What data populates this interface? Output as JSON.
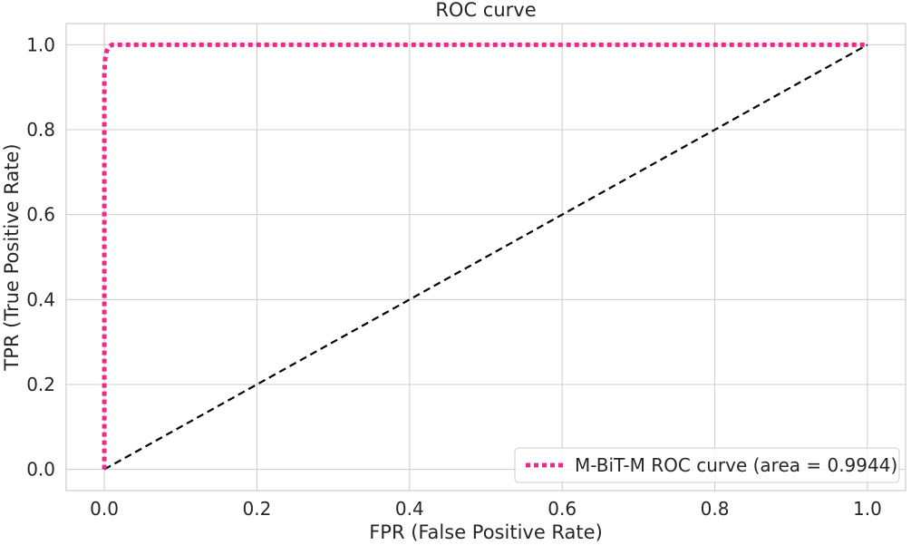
{
  "chart_data": {
    "type": "line",
    "title": "ROC curve",
    "xlabel": "FPR (False Positive Rate)",
    "ylabel": "TPR (True Positive Rate)",
    "xlim": [
      -0.05,
      1.05
    ],
    "ylim": [
      -0.05,
      1.05
    ],
    "x_ticks": [
      0.0,
      0.2,
      0.4,
      0.6,
      0.8,
      1.0
    ],
    "y_ticks": [
      0.0,
      0.2,
      0.4,
      0.6,
      0.8,
      1.0
    ],
    "x_tick_labels": [
      "0.0",
      "0.2",
      "0.4",
      "0.6",
      "0.8",
      "1.0"
    ],
    "y_tick_labels": [
      "0.0",
      "0.2",
      "0.4",
      "0.6",
      "0.8",
      "1.0"
    ],
    "grid": true,
    "legend_position": "bottom-right",
    "series": [
      {
        "name": "M-BiT-M ROC curve (area = 0.9944)",
        "style": "dotted",
        "color": "#f0288c",
        "x": [
          0.0,
          0.0,
          0.001,
          0.003,
          0.006,
          0.01,
          0.02,
          0.1,
          0.5,
          1.0
        ],
        "y": [
          0.0,
          0.93,
          0.965,
          0.985,
          0.995,
          1.0,
          1.0,
          1.0,
          1.0,
          1.0
        ]
      },
      {
        "name": "chance",
        "style": "dashed",
        "color": "#000000",
        "x": [
          0.0,
          1.0
        ],
        "y": [
          0.0,
          1.0
        ]
      }
    ]
  }
}
